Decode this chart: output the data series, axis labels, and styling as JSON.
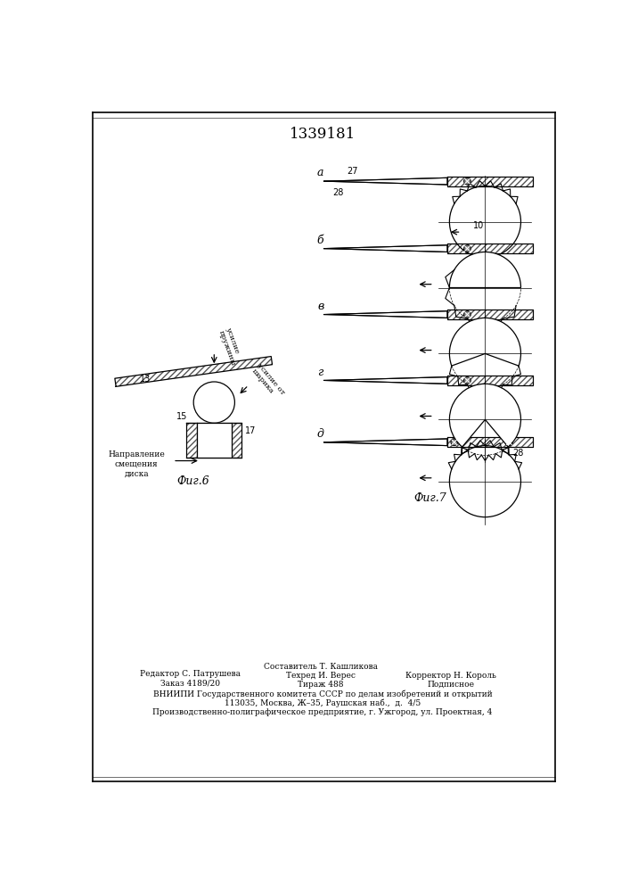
{
  "patent_number": "1339181",
  "background_color": "#ffffff",
  "line_color": "#000000",
  "fig6_label": "Фиг.6",
  "fig7_label": "Фиг.7",
  "section_labels_fig7": [
    "а",
    "б",
    "в",
    "г",
    "д"
  ],
  "footer_col1_line1": "Редактор С. Патрушева",
  "footer_col1_line2": "Заказ 4189/20",
  "footer_col2_line1": "Составитель Т. Кашликова",
  "footer_col2_line2": "Техред И. Верес",
  "footer_col2_line3": "Тираж 488",
  "footer_col3_line1": "Корректор Н. Король",
  "footer_col3_line2": "Подписное",
  "footer_line3": "ВНИИПИ Государственного комитета СССР по делам изобретений и открытий",
  "footer_line4": "113035, Москва, Ж–35, Раушская наб.,  д.  4/5",
  "footer_line5": "Производственно-полиграфическое предприятие, г. Ужгород, ул. Проектная, 4"
}
